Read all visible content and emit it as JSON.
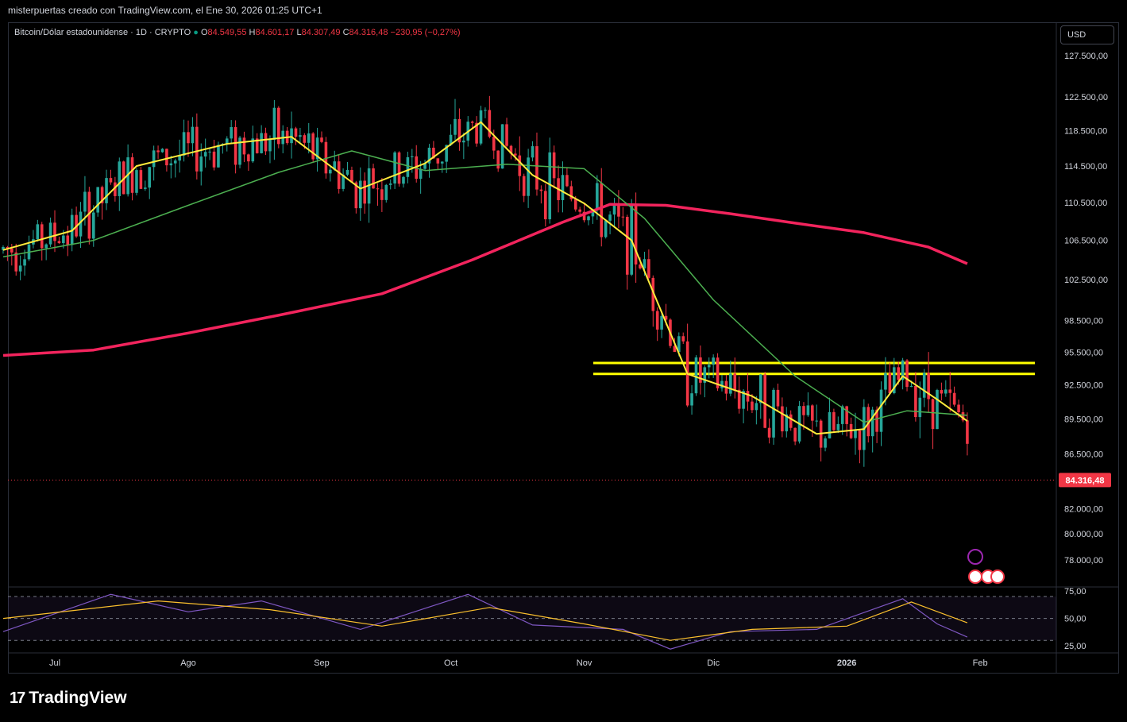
{
  "header": {
    "attribution": "misterpuertas creado con TradingView.com, el Ene 30, 2026 01:25 UTC+1"
  },
  "legend": {
    "symbol": "Bitcoin/Dólar estadounidense · 1D · CRYPTO",
    "o_label": "O",
    "o_value": "84.549,55",
    "h_label": "H",
    "h_value": "84.601,17",
    "l_label": "L",
    "l_value": "84.307,49",
    "c_label": "C",
    "c_value": "84.316,48",
    "change": "−230,95 (−0,27%)"
  },
  "currency_button": "USD",
  "last_price_label": "84.316,48",
  "brand": {
    "name": "TradingView"
  },
  "colors": {
    "up": "#26a69a",
    "down": "#f23645",
    "ema_blue": "#2962ff",
    "ema_yellow": "#ffeb3b",
    "ema_green": "#4caf50",
    "ema_pink": "#f2245d",
    "rsi_line": "#7e57c2",
    "rsi_ma": "#fbc02d",
    "resistance": "#ffff00"
  },
  "chart_data": [
    {
      "type": "line",
      "title": "",
      "y_axis_ticks": [
        "127.500,00",
        "122.500,00",
        "118.500,00",
        "114.500,00",
        "110.500,00",
        "106.500,00",
        "102.500,00",
        "98.500,00",
        "95.500,00",
        "92.500,00",
        "89.500,00",
        "86.500,00",
        "82.000,00",
        "80.000,00",
        "78.000,00"
      ],
      "x_axis_ticks": [
        "Jul",
        "Ago",
        "Sep",
        "Oct",
        "Nov",
        "Dic",
        "2026",
        "Feb"
      ],
      "ylim": [
        76500,
        129500
      ],
      "log_scale": true,
      "resistance_levels": [
        94500,
        93500
      ],
      "series": [
        {
          "name": "",
          "color": "ema_pink",
          "x": [
            "2025-06-19",
            "2025-07-10",
            "2025-08-01",
            "2025-08-22",
            "2025-09-15",
            "2025-10-06",
            "2025-10-27",
            "2025-11-07",
            "2025-11-20",
            "2025-12-05",
            "2025-12-20",
            "2026-01-05",
            "2026-01-20",
            "2026-01-29"
          ],
          "values": [
            95200,
            95700,
            97300,
            99000,
            101100,
            104500,
            108400,
            110300,
            110200,
            109300,
            108300,
            107300,
            105800,
            104100
          ]
        },
        {
          "name": "",
          "color": "ema_green",
          "x": [
            "2025-06-19",
            "2025-07-10",
            "2025-08-01",
            "2025-08-22",
            "2025-09-08",
            "2025-09-25",
            "2025-10-14",
            "2025-11-01",
            "2025-11-15",
            "2025-12-01",
            "2025-12-20",
            "2026-01-05",
            "2026-01-15",
            "2026-01-29"
          ],
          "values": [
            104800,
            106500,
            110200,
            113800,
            116200,
            114000,
            114700,
            114200,
            108800,
            100500,
            93300,
            89200,
            90200,
            89800
          ]
        },
        {
          "name": "",
          "color": "ema_yellow",
          "x": [
            "2025-06-19",
            "2025-07-05",
            "2025-07-20",
            "2025-08-10",
            "2025-08-25",
            "2025-09-10",
            "2025-09-25",
            "2025-10-08",
            "2025-10-20",
            "2025-11-01",
            "2025-11-12",
            "2025-11-25",
            "2025-12-10",
            "2025-12-25",
            "2026-01-05",
            "2026-01-14",
            "2026-01-22",
            "2026-01-29"
          ],
          "values": [
            105500,
            107500,
            114500,
            117000,
            117800,
            112000,
            114800,
            119500,
            113500,
            110400,
            106500,
            93500,
            91500,
            88200,
            88600,
            93300,
            91200,
            89300
          ]
        }
      ]
    },
    {
      "type": "line",
      "title": "",
      "y_axis_ticks": [
        "75,00",
        "50,00",
        "25,00"
      ],
      "ylim": [
        20,
        78
      ],
      "band": [
        70,
        30
      ],
      "series": [
        {
          "name": "",
          "color": "rsi_line",
          "x": [
            "2025-06-19",
            "2025-07-14",
            "2025-08-01",
            "2025-08-18",
            "2025-09-10",
            "2025-10-05",
            "2025-10-20",
            "2025-11-10",
            "2025-11-21",
            "2025-12-05",
            "2025-12-25",
            "2026-01-14",
            "2026-01-22",
            "2026-01-29"
          ],
          "values": [
            38,
            72,
            56,
            66,
            40,
            72,
            44,
            40,
            22,
            38,
            40,
            68,
            45,
            33
          ]
        },
        {
          "name": "",
          "color": "rsi_ma",
          "x": [
            "2025-06-19",
            "2025-07-25",
            "2025-08-20",
            "2025-09-15",
            "2025-10-10",
            "2025-11-01",
            "2025-11-21",
            "2025-12-10",
            "2026-01-01",
            "2026-01-16",
            "2026-01-29"
          ],
          "values": [
            50,
            66,
            58,
            43,
            60,
            45,
            30,
            40,
            43,
            65,
            46
          ]
        }
      ]
    }
  ]
}
